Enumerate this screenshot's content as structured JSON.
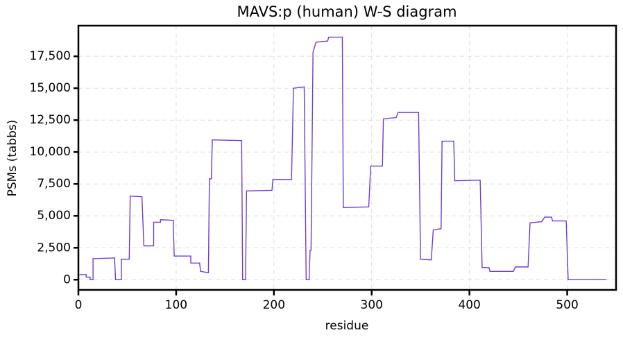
{
  "chart_data": {
    "type": "line",
    "title": "MAVS:p (human) W-S diagram",
    "x_label": "residue",
    "y_label": "PSMs (tabbs)",
    "x": [
      1,
      8,
      8,
      12,
      12,
      15,
      15,
      37,
      38,
      44,
      44,
      52,
      53,
      65,
      67,
      77,
      77,
      84,
      84,
      97,
      98,
      115,
      115,
      124,
      125,
      133,
      134,
      136,
      137,
      167,
      168,
      171,
      172,
      198,
      199,
      218,
      220,
      231,
      233,
      236,
      237,
      238,
      240,
      243,
      255,
      256,
      270,
      271,
      297,
      299,
      311,
      312,
      325,
      327,
      348,
      350,
      361,
      363,
      371,
      372,
      384,
      385,
      411,
      413,
      420,
      421,
      445,
      447,
      460,
      462,
      474,
      477,
      484,
      485,
      499,
      501,
      540
    ],
    "series": [
      {
        "name": "PSMs",
        "color": "#6a3fcf",
        "values": [
          400,
          400,
          200,
          200,
          0,
          0,
          1650,
          1700,
          0,
          0,
          1600,
          1600,
          6550,
          6500,
          2650,
          2650,
          4500,
          4500,
          4700,
          4650,
          1850,
          1850,
          1300,
          1300,
          650,
          550,
          7900,
          7900,
          10950,
          10900,
          0,
          0,
          6950,
          7000,
          7850,
          7850,
          15000,
          15100,
          0,
          0,
          2300,
          2300,
          17800,
          18600,
          18700,
          19000,
          19000,
          5650,
          5700,
          8900,
          8900,
          12600,
          12700,
          13100,
          13100,
          1600,
          1550,
          3900,
          4000,
          10850,
          10850,
          7750,
          7800,
          950,
          950,
          650,
          650,
          1000,
          1000,
          4450,
          4550,
          4900,
          4900,
          4600,
          4600,
          0,
          0
        ]
      }
    ],
    "xlim": [
      0,
      550
    ],
    "ylim": [
      -800,
      19900
    ],
    "xticks": [
      0,
      100,
      200,
      300,
      400,
      500
    ],
    "yticks": [
      0,
      {
        "value": 2500,
        "label": "2,500"
      },
      {
        "value": 5000,
        "label": "5,000"
      },
      {
        "value": 7500,
        "label": "7,500"
      },
      {
        "value": 10000,
        "label": "10,000"
      },
      {
        "value": 12500,
        "label": "12,500"
      },
      {
        "value": 15000,
        "label": "15,000"
      },
      {
        "value": 17500,
        "label": "17,500"
      }
    ],
    "grid": true
  }
}
